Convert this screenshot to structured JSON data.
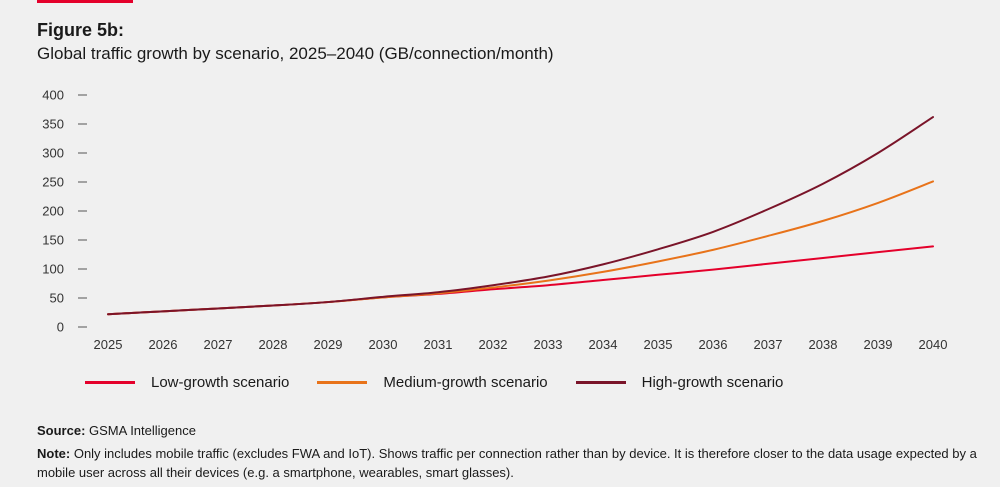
{
  "header": {
    "figure_label": "Figure 5b:",
    "title": "Global traffic growth by scenario, 2025–2040 (GB/connection/month)"
  },
  "colors": {
    "accent": "#e4002b",
    "low": "#e4002b",
    "medium": "#e8731a",
    "high": "#7a1429"
  },
  "chart_data": {
    "type": "line",
    "title": "Global traffic growth by scenario, 2025–2040 (GB/connection/month)",
    "xlabel": "",
    "ylabel": "GB/connection/month",
    "x": [
      "2025",
      "2026",
      "2027",
      "2028",
      "2029",
      "2030",
      "2031",
      "2032",
      "2033",
      "2034",
      "2035",
      "2036",
      "2037",
      "2038",
      "2039",
      "2040"
    ],
    "yticks": [
      0,
      50,
      100,
      150,
      200,
      250,
      300,
      350,
      400
    ],
    "ylim": [
      0,
      400
    ],
    "grid": false,
    "legend_position": "bottom",
    "series": [
      {
        "name": "Low-growth scenario",
        "color": "#e4002b",
        "values": [
          22,
          27,
          32,
          37,
          43,
          51,
          57,
          65,
          72,
          81,
          90,
          99,
          109,
          119,
          129,
          139
        ]
      },
      {
        "name": "Medium-growth scenario",
        "color": "#e8731a",
        "values": [
          22,
          27,
          32,
          37,
          43,
          51,
          58,
          68,
          80,
          95,
          113,
          133,
          157,
          183,
          214,
          251
        ]
      },
      {
        "name": "High-growth scenario",
        "color": "#7a1429",
        "values": [
          22,
          27,
          32,
          37,
          43,
          52,
          60,
          72,
          87,
          108,
          134,
          164,
          203,
          247,
          300,
          362
        ]
      }
    ]
  },
  "footer": {
    "source_label": "Source:",
    "source_text": " GSMA Intelligence",
    "note_label": "Note:",
    "note_text": " Only includes mobile traffic (excludes FWA and IoT). Shows traffic per connection rather than by device. It is therefore closer to the data usage expected by a mobile user across all their devices (e.g. a smartphone, wearables, smart glasses)."
  }
}
